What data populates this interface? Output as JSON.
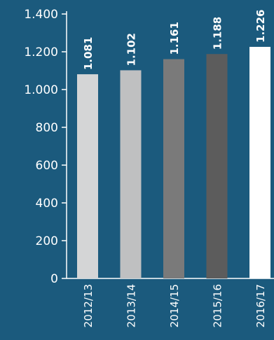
{
  "chart_data": {
    "type": "bar",
    "categories": [
      "2012/13",
      "2013/14",
      "2014/15",
      "2015/16",
      "2016/17"
    ],
    "values": [
      1081,
      1102,
      1161,
      1188,
      1226
    ],
    "value_labels": [
      "1.081",
      "1.102",
      "1.161",
      "1.188",
      "1.226"
    ],
    "y_ticks": [
      0,
      200,
      400,
      600,
      800,
      1000,
      1200,
      1400
    ],
    "y_tick_labels": [
      "0",
      "200",
      "400",
      "600",
      "800",
      "1.000",
      "1.200",
      "1.400"
    ],
    "ylim": [
      0,
      1400
    ],
    "grid": false,
    "legend": "none",
    "title": "",
    "xlabel": "",
    "ylabel": ""
  },
  "colors": {
    "background": "#1b5a7d",
    "axis": "#ffffff",
    "text": "#ffffff",
    "bars": [
      "#d4d5d6",
      "#bfc0c1",
      "#7a7a7a",
      "#5c5c5c",
      "#ffffff"
    ]
  }
}
